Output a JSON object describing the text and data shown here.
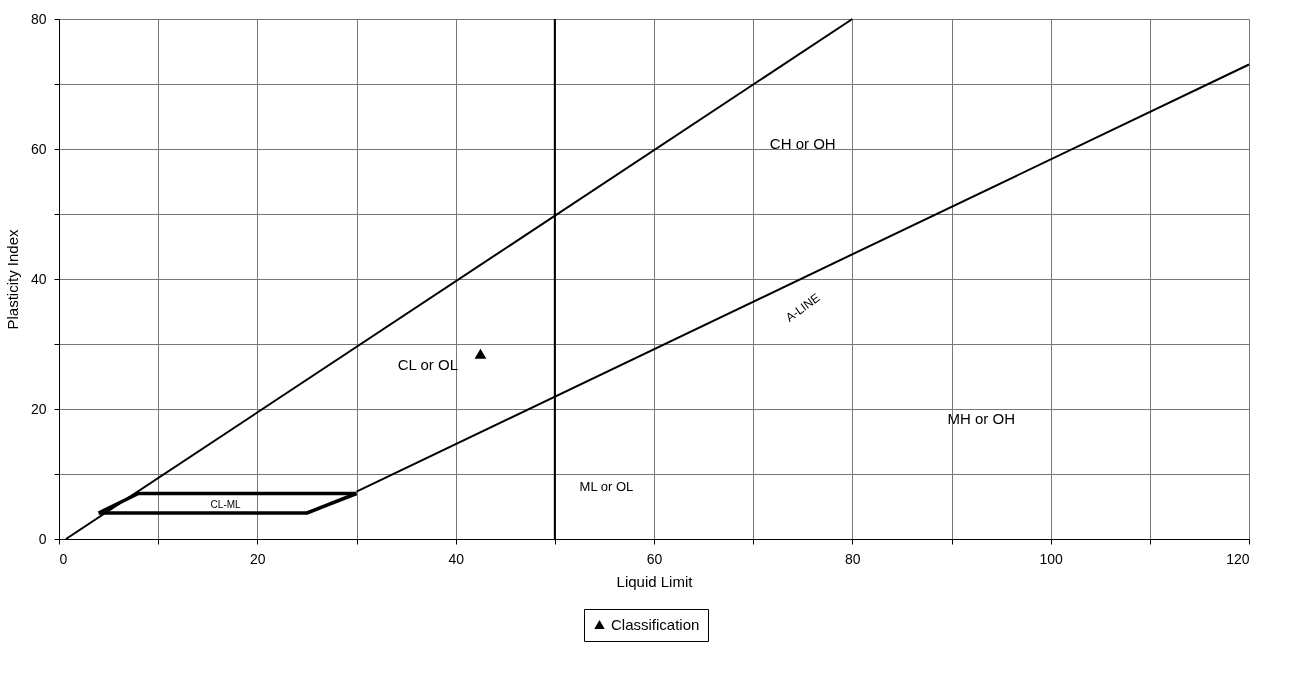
{
  "chart_data": {
    "type": "line",
    "xlabel": "Liquid Limit",
    "ylabel": "Plasticity Index",
    "xlim": [
      0,
      120
    ],
    "ylim": [
      0,
      80
    ],
    "xticks": [
      0,
      {
        "value": 10,
        "label": null
      },
      20,
      {
        "value": 30,
        "label": null
      },
      40,
      {
        "value": 50,
        "label": null
      },
      60,
      {
        "value": 70,
        "label": null
      },
      80,
      {
        "value": 90,
        "label": null
      },
      100,
      {
        "value": 110,
        "label": null
      },
      120
    ],
    "yticks": [
      0,
      {
        "value": 10,
        "label": null
      },
      20,
      {
        "value": 30,
        "label": null
      },
      40,
      {
        "value": 50,
        "label": null
      },
      60,
      {
        "value": 70,
        "label": null
      },
      80
    ],
    "grid": true,
    "legend": "bottom",
    "series": [
      {
        "color": "#000000",
        "x": [
          0.7,
          80
        ],
        "values": [
          0,
          80
        ]
      },
      {
        "color": "#000000",
        "x": [
          30,
          120
        ],
        "values": [
          7.3,
          73
        ]
      },
      {
        "color": "#000000",
        "x": [
          4,
          8,
          30
        ],
        "values": [
          4,
          7,
          7
        ]
      },
      {
        "color": "#000000",
        "x": [
          4,
          25,
          30
        ],
        "values": [
          4,
          4,
          7
        ]
      },
      {
        "type": "scatter",
        "name": "Classification",
        "color": "#000000",
        "marker": "triangle",
        "x": [
          42.5
        ],
        "values": [
          28.5
        ]
      }
    ],
    "ref_lines": [
      {
        "axis": "x",
        "value": 50,
        "color": "#000000"
      }
    ],
    "annotations": [
      "CH or OH",
      "CL or OL",
      "A-LINE",
      "MH or OH",
      "ML or OL",
      "CL-ML"
    ]
  }
}
